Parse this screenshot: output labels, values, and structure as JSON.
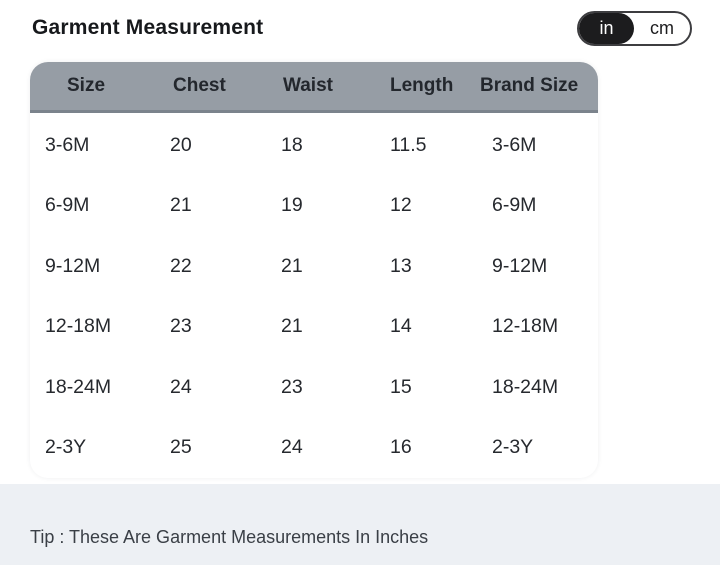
{
  "header": {
    "title": "Garment Measurement"
  },
  "unit_toggle": {
    "options": [
      {
        "label": "in",
        "selected": true
      },
      {
        "label": "cm",
        "selected": false
      }
    ],
    "selected_color": "#1c1c1e"
  },
  "table": {
    "columns": [
      "Size",
      "Chest",
      "Waist",
      "Length",
      "Brand Size"
    ],
    "rows": [
      [
        "3-6M",
        "20",
        "18",
        "11.5",
        "3-6M"
      ],
      [
        "6-9M",
        "21",
        "19",
        "12",
        "6-9M"
      ],
      [
        "9-12M",
        "22",
        "21",
        "13",
        "9-12M"
      ],
      [
        "12-18M",
        "23",
        "21",
        "14",
        "12-18M"
      ],
      [
        "18-24M",
        "24",
        "23",
        "15",
        "18-24M"
      ],
      [
        "2-3Y",
        "25",
        "24",
        "16",
        "2-3Y"
      ]
    ],
    "header_bg": "#969da5",
    "header_border": "#7b838c"
  },
  "tip": {
    "text": "Tip : These Are Garment Measurements In Inches",
    "background": "#edf0f4"
  }
}
